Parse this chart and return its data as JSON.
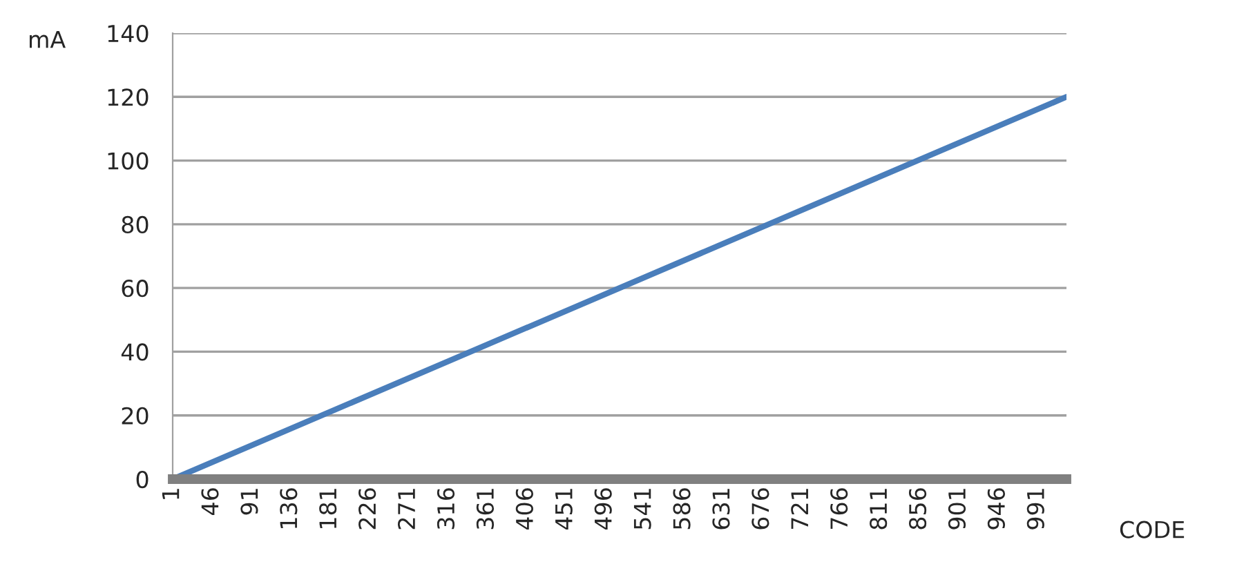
{
  "chart_data": {
    "type": "line",
    "xlabel": "CODE",
    "ylabel": "mA",
    "x": [
      1,
      1024
    ],
    "series": [
      {
        "color": "#4a7ebb",
        "values": [
          0,
          120
        ]
      }
    ],
    "xlim": [
      1,
      1024
    ],
    "xticks": [
      1,
      46,
      91,
      136,
      181,
      226,
      271,
      316,
      361,
      406,
      451,
      496,
      541,
      586,
      631,
      676,
      721,
      766,
      811,
      856,
      901,
      946,
      991
    ],
    "ylim": [
      0,
      140
    ],
    "yticks": [
      0,
      20,
      40,
      60,
      80,
      100,
      120,
      140
    ],
    "grid": "y",
    "legend": false,
    "marker": "none",
    "line_style": "solid"
  }
}
